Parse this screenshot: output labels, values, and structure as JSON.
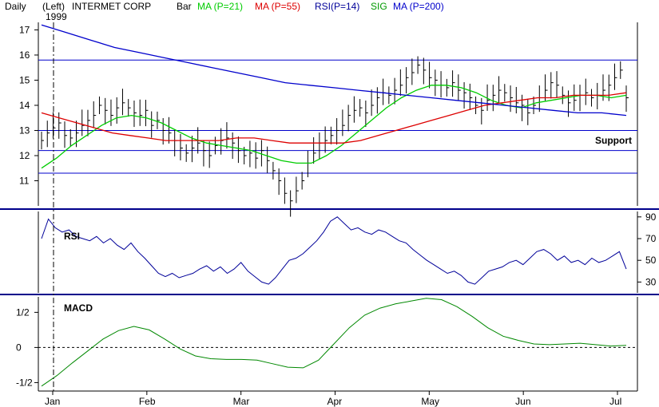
{
  "header": {
    "period": "Daily",
    "axis_side": "(Left)",
    "company": "INTERMET CORP",
    "bar_label": "Bar",
    "ma21_label": "MA (P=21)",
    "ma55_label": "MA (P=55)",
    "rsi_label": "RSI(P=14)",
    "sig_label": "SIG",
    "ma200_label": "MA (P=200)",
    "year": "1999"
  },
  "colors": {
    "ma21": "#00cc00",
    "ma55": "#dd0000",
    "rsi": "#000099",
    "sig": "#009900",
    "ma200": "#0000cc",
    "support": "#0000cc",
    "bars": "#000000",
    "macd": "#008800"
  },
  "chart_data": [
    {
      "type": "line",
      "title": "",
      "ylim": [
        10,
        17.3
      ],
      "y_ticks": [
        "17",
        "16",
        "15",
        "14",
        "13",
        "12",
        "11"
      ],
      "x_ticks": [
        "Jan",
        "Feb",
        "Mar",
        "Apr",
        "May",
        "Jun",
        "Jul"
      ],
      "support_levels": [
        15.8,
        13.0,
        12.2,
        11.3
      ],
      "annotations": [
        "Support"
      ],
      "bars": [
        12.6,
        12.9,
        13.1,
        13.3,
        12.8,
        12.7,
        12.9,
        13.2,
        13.4,
        13.6,
        14.0,
        13.8,
        13.6,
        13.9,
        14.1,
        13.9,
        13.7,
        13.6,
        13.8,
        13.2,
        13.4,
        13.0,
        12.9,
        12.6,
        12.3,
        12.1,
        12.3,
        12.5,
        12.2,
        12.0,
        12.4,
        12.6,
        12.7,
        12.5,
        12.2,
        12.0,
        12.1,
        11.9,
        12.2,
        11.8,
        11.4,
        11.0,
        10.5,
        10.2,
        10.6,
        11.0,
        11.7,
        12.1,
        12.5,
        12.6,
        12.8,
        13.0,
        13.2,
        13.6,
        13.8,
        13.9,
        13.7,
        14.0,
        14.3,
        14.5,
        14.4,
        14.6,
        14.8,
        15.1,
        15.3,
        15.6,
        15.4,
        15.1,
        15.0,
        14.8,
        14.7,
        14.9,
        14.6,
        14.5,
        14.3,
        14.0,
        13.8,
        14.2,
        14.4,
        14.6,
        14.5,
        14.3,
        14.1,
        14.0,
        13.7,
        14.0,
        14.3,
        14.6,
        14.9,
        14.8,
        14.4,
        14.1,
        14.2,
        14.4,
        14.5,
        14.3,
        14.4,
        14.6,
        14.8,
        15.1,
        15.4,
        14.3
      ],
      "series": [
        {
          "name": "MA (P=21)",
          "values": [
            11.5,
            11.9,
            12.4,
            12.8,
            13.2,
            13.5,
            13.6,
            13.5,
            13.3,
            13.0,
            12.7,
            12.5,
            12.4,
            12.3,
            12.2,
            12.0,
            11.8,
            11.7,
            11.7,
            12.0,
            12.4,
            12.9,
            13.4,
            13.9,
            14.3,
            14.6,
            14.8,
            14.8,
            14.7,
            14.5,
            14.2,
            14.0,
            13.9,
            14.1,
            14.2,
            14.3,
            14.4,
            14.4,
            14.3,
            14.4
          ]
        },
        {
          "name": "MA (P=55)",
          "values": [
            13.7,
            13.5,
            13.3,
            13.1,
            12.9,
            12.8,
            12.7,
            12.6,
            12.6,
            12.6,
            12.6,
            12.7,
            12.7,
            12.6,
            12.5,
            12.5,
            12.5,
            12.5,
            12.6,
            12.8,
            13.0,
            13.2,
            13.4,
            13.6,
            13.8,
            14.0,
            14.1,
            14.2,
            14.3,
            14.3,
            14.4,
            14.4,
            14.4,
            14.5
          ]
        },
        {
          "name": "MA (P=200)",
          "values": [
            17.2,
            16.9,
            16.6,
            16.3,
            16.1,
            15.9,
            15.7,
            15.5,
            15.3,
            15.1,
            14.9,
            14.8,
            14.7,
            14.6,
            14.5,
            14.4,
            14.3,
            14.2,
            14.1,
            14.0,
            13.9,
            13.8,
            13.7,
            13.7,
            13.6
          ]
        }
      ]
    },
    {
      "type": "line",
      "title": "RSI",
      "ylim": [
        20,
        95
      ],
      "y_ticks": [
        "90",
        "70",
        "50",
        "30"
      ],
      "series": [
        {
          "name": "RSI",
          "values": [
            70,
            88,
            80,
            76,
            78,
            72,
            70,
            68,
            72,
            66,
            70,
            64,
            60,
            66,
            58,
            52,
            45,
            38,
            35,
            38,
            34,
            36,
            38,
            42,
            45,
            40,
            44,
            38,
            42,
            48,
            40,
            35,
            30,
            28,
            34,
            42,
            50,
            52,
            56,
            62,
            68,
            76,
            86,
            90,
            84,
            78,
            80,
            76,
            74,
            78,
            76,
            72,
            68,
            66,
            60,
            55,
            50,
            46,
            42,
            38,
            40,
            36,
            30,
            28,
            34,
            40,
            42,
            44,
            48,
            50,
            46,
            52,
            58,
            60,
            56,
            50,
            54,
            48,
            50,
            46,
            52,
            48,
            50,
            54,
            58,
            42
          ]
        }
      ]
    },
    {
      "type": "line",
      "title": "MACD",
      "ylim": [
        -0.62,
        0.72
      ],
      "y_ticks": [
        "1/2",
        "0",
        "-1/2"
      ],
      "series": [
        {
          "name": "MACD",
          "values": [
            -0.55,
            -0.4,
            -0.22,
            -0.05,
            0.12,
            0.24,
            0.3,
            0.25,
            0.12,
            -0.02,
            -0.12,
            -0.16,
            -0.17,
            -0.17,
            -0.18,
            -0.23,
            -0.28,
            -0.29,
            -0.18,
            0.05,
            0.28,
            0.46,
            0.56,
            0.62,
            0.66,
            0.7,
            0.68,
            0.58,
            0.44,
            0.28,
            0.16,
            0.1,
            0.05,
            0.04,
            0.05,
            0.06,
            0.04,
            0.02,
            0.03
          ]
        }
      ]
    }
  ]
}
